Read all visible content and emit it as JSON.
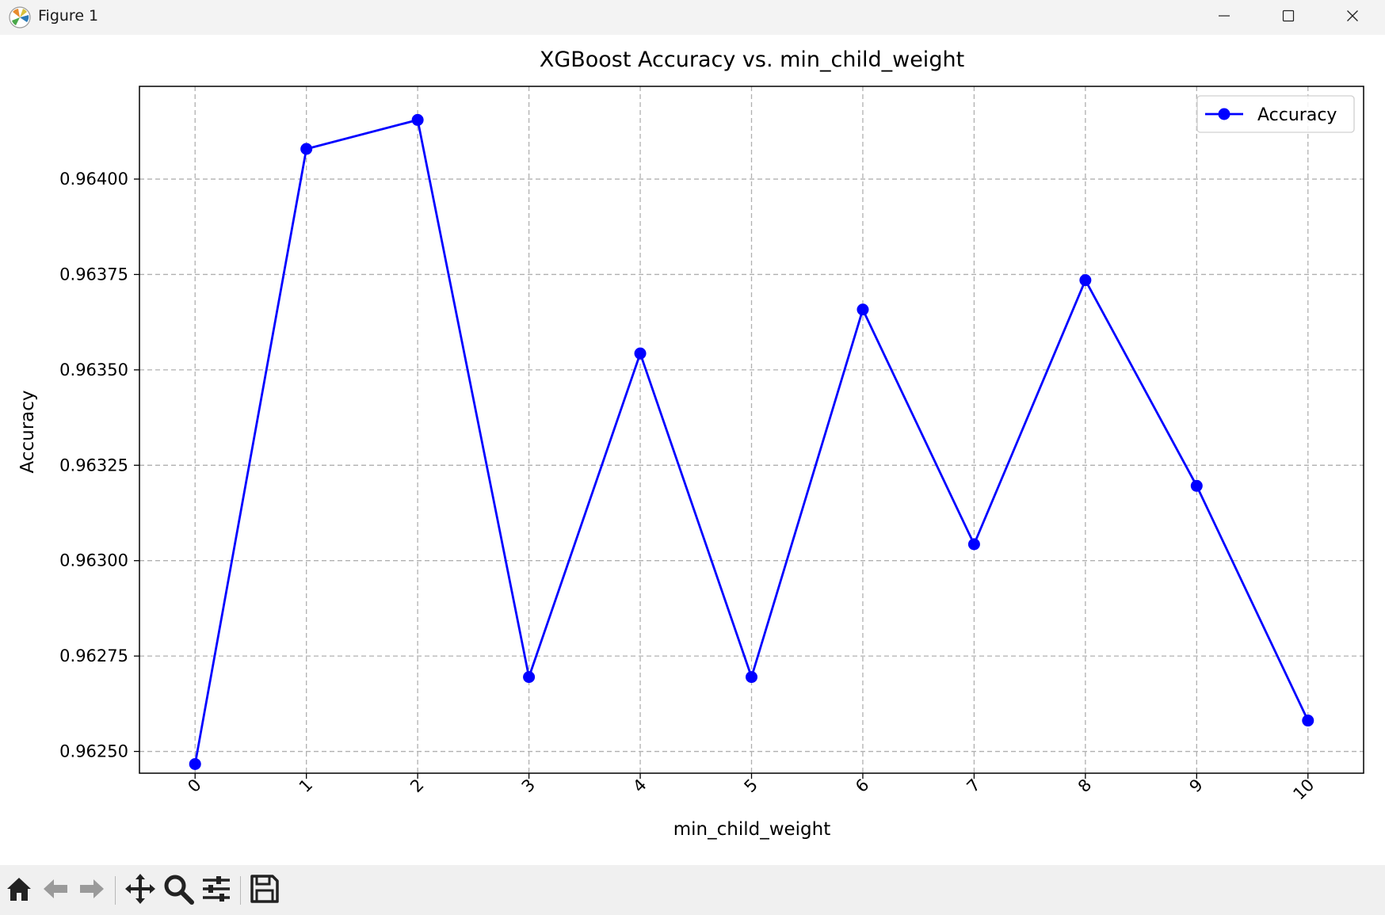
{
  "window": {
    "title": "Figure 1",
    "controls": [
      "minimize",
      "maximize",
      "close"
    ]
  },
  "toolbar": {
    "buttons": [
      "home-icon",
      "back-arrow-icon",
      "forward-arrow-icon",
      "pan-icon",
      "zoom-icon",
      "configure-subplots-icon",
      "save-icon"
    ]
  },
  "chart_data": {
    "type": "line",
    "title": "XGBoost Accuracy vs. min_child_weight",
    "xlabel": "min_child_weight",
    "ylabel": "Accuracy",
    "x": [
      0,
      1,
      2,
      3,
      4,
      5,
      6,
      7,
      8,
      9,
      10
    ],
    "x_tick_labels": [
      "0",
      "1",
      "2",
      "3",
      "4",
      "5",
      "6",
      "7",
      "8",
      "9",
      "10"
    ],
    "series": [
      {
        "name": "Accuracy",
        "color": "#0000ff",
        "marker": "circle",
        "values": [
          0.962467,
          0.964079,
          0.964155,
          0.962695,
          0.963543,
          0.962695,
          0.963658,
          0.963043,
          0.963735,
          0.963196,
          0.962581
        ]
      }
    ],
    "ylim": [
      0.962443,
      0.964243
    ],
    "y_ticks": [
      0.9625,
      0.96275,
      0.963,
      0.96325,
      0.9635,
      0.96375,
      0.964
    ],
    "y_tick_labels": [
      "0.96250",
      "0.96275",
      "0.96300",
      "0.96325",
      "0.96350",
      "0.96375",
      "0.96400"
    ],
    "xlim": [
      -0.5,
      10.5
    ],
    "grid": true,
    "legend": "top-right",
    "x_tick_rotation": "45"
  }
}
